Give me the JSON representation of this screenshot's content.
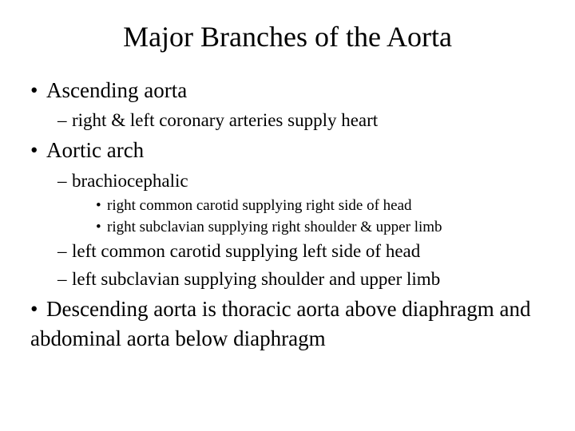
{
  "title": "Major Branches of the Aorta",
  "item1": {
    "text": "Ascending aorta",
    "sub1": "right & left coronary arteries supply heart"
  },
  "item2": {
    "text": "Aortic arch",
    "sub1": "brachiocephalic",
    "sub1_detail1": "right common carotid supplying right side of head",
    "sub1_detail2": "right subclavian supplying right shoulder & upper limb",
    "sub2": "left common carotid supplying left side of head",
    "sub3": "left subclavian supplying shoulder and upper limb"
  },
  "item3": {
    "text": "Descending aorta is thoracic aorta above diaphragm and abdominal aorta below diaphragm"
  },
  "bullets": {
    "round": "•",
    "dash": "–"
  }
}
